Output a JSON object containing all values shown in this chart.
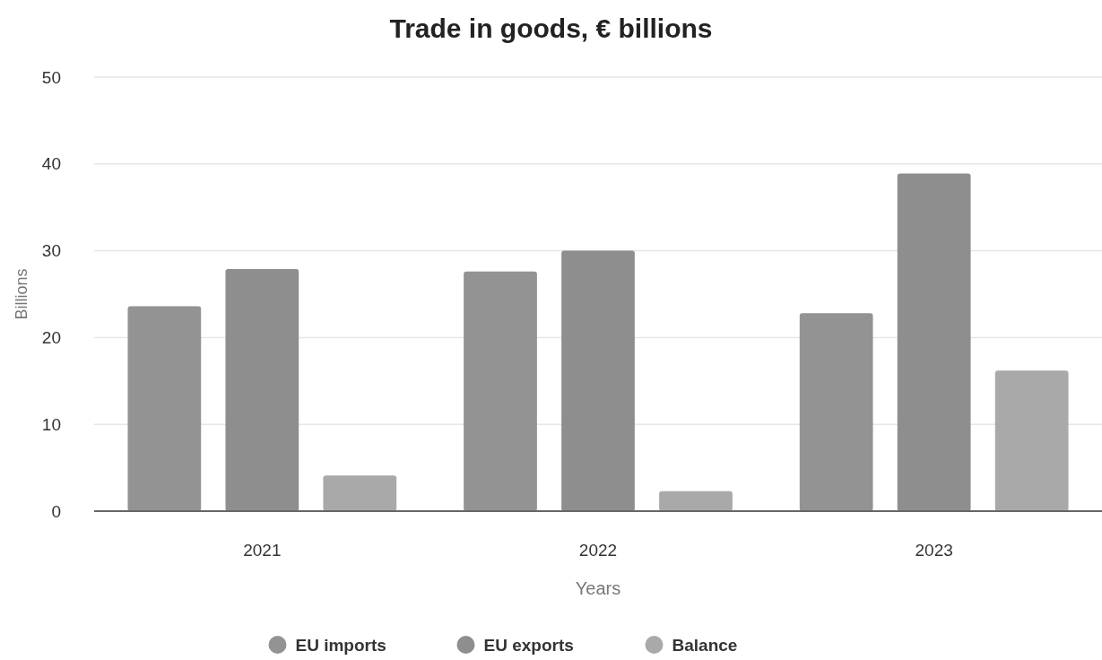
{
  "chart_data": {
    "type": "bar",
    "title": "Trade in goods, € billions",
    "xlabel": "Years",
    "ylabel": "Billions",
    "categories": [
      "2021",
      "2022",
      "2023"
    ],
    "series": [
      {
        "name": "EU imports",
        "color": "#939393",
        "values": [
          23.6,
          27.6,
          22.8
        ]
      },
      {
        "name": "EU exports",
        "color": "#8e8e8e",
        "values": [
          27.9,
          30,
          38.9
        ]
      },
      {
        "name": "Balance",
        "color": "#a9a9a9",
        "values": [
          4.1,
          2.3,
          16.2
        ]
      }
    ],
    "ylim": [
      0,
      50
    ],
    "yticks": [
      0,
      10,
      20,
      30,
      40,
      50
    ],
    "grid": "y",
    "legend": "bottom"
  }
}
